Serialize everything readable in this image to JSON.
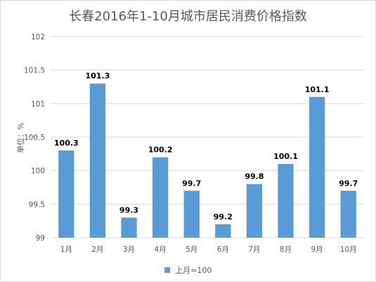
{
  "chart_data": {
    "type": "bar",
    "title": "长春2016年1-10月城市居民消费价格指数",
    "ylabel": "单位：%",
    "xlabel": "",
    "categories": [
      "1月",
      "2月",
      "3月",
      "4月",
      "5月",
      "6月",
      "7月",
      "8月",
      "9月",
      "10月"
    ],
    "series": [
      {
        "name": "上月=100",
        "values": [
          100.3,
          101.3,
          99.3,
          100.2,
          99.7,
          99.2,
          99.8,
          100.1,
          101.1,
          99.7
        ],
        "value_labels": [
          "100.3",
          "101.3",
          "99.3",
          "100.2",
          "99.7",
          "99.2",
          "99.8",
          "100.1",
          "101.1",
          "99.7"
        ]
      }
    ],
    "ylim": [
      99,
      102
    ],
    "yticks": [
      99,
      99.5,
      100,
      100.5,
      101,
      101.5,
      102
    ],
    "ytick_labels": [
      "99",
      "99.5",
      "100",
      "100.5",
      "101",
      "101.5",
      "102"
    ],
    "grid": true,
    "legend_position": "bottom",
    "bar_color": "#5b9bd5",
    "grid_color": "#d9d9d9"
  }
}
